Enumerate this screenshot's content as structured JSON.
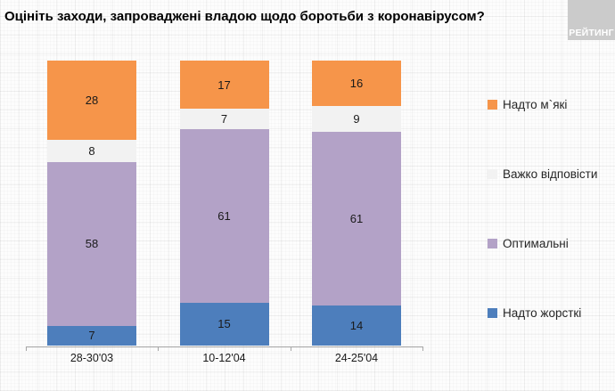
{
  "title": "Оцініть заходи, запроваджені владою щодо боротьби з коронавірусом?",
  "logo": {
    "text": "РЕЙТИНГ",
    "bg": "#cbcbcb",
    "fg": "#ffffff"
  },
  "colors": {
    "background": "#fdfdfd",
    "axis": "#a6a6a6",
    "value_label": "#1a1a1a"
  },
  "chart_data": {
    "type": "bar",
    "stacked": true,
    "normalized_to_100": true,
    "title": "Оцініть заходи, запроваджені владою щодо боротьби з коронавірусом?",
    "categories": [
      "28-30'03",
      "10-12'04",
      "24-25'04"
    ],
    "series": [
      {
        "name": "Надто м`які",
        "color": "#f6954a",
        "values": [
          28,
          17,
          16
        ]
      },
      {
        "name": "Важко відповісти",
        "color": "#f2f2f2",
        "values": [
          8,
          7,
          9
        ]
      },
      {
        "name": "Оптимальні",
        "color": "#b3a2c7",
        "values": [
          58,
          61,
          61
        ]
      },
      {
        "name": "Надто жорсткі",
        "color": "#4d7ebc",
        "values": [
          7,
          15,
          14
        ]
      }
    ],
    "legend_position": "right",
    "legend_order_top_to_bottom": [
      "Надто м`які",
      "Важко відповісти",
      "Оптимальні",
      "Надто жорсткі"
    ],
    "value_labels": "inside",
    "grid": false,
    "xlabel": "",
    "ylabel": ""
  }
}
